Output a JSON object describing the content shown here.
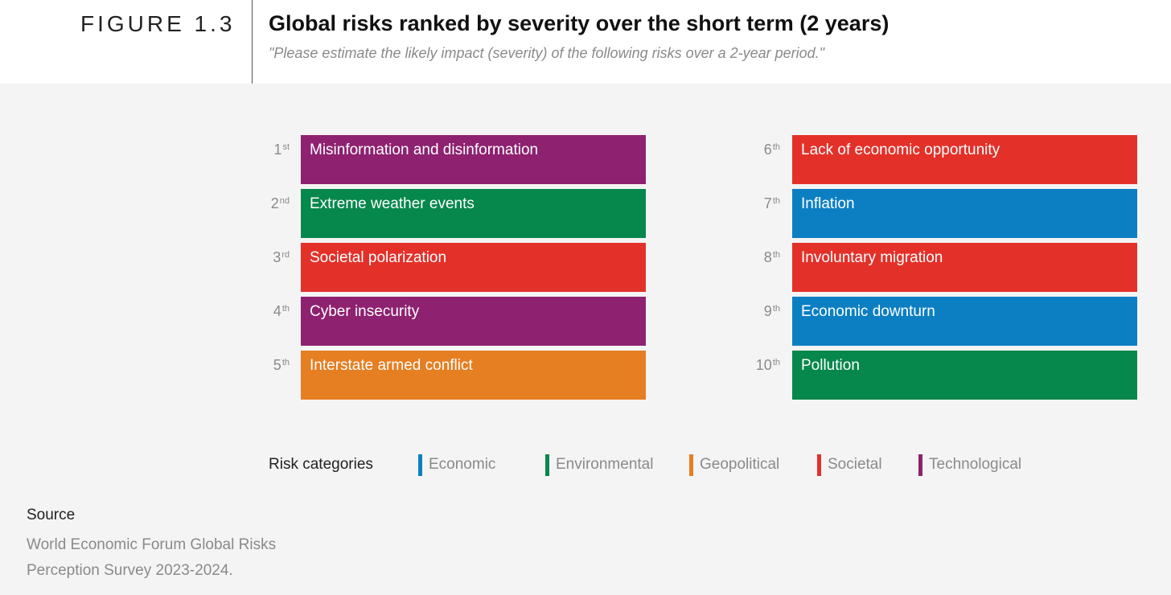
{
  "header": {
    "figure_label": "FIGURE 1.3",
    "title": "Global risks ranked by severity over the short term (2 years)",
    "subtitle": "\"Please estimate the likely impact (severity) of the following risks over a 2-year period.\""
  },
  "colors": {
    "Economic": "#0c7fc3",
    "Environmental": "#06874b",
    "Geopolitical": "#e67e22",
    "Societal": "#e3312a",
    "Technological": "#8e2170"
  },
  "chart_data": {
    "type": "table",
    "title": "Global risks ranked by severity over the short term (2 years)",
    "rows": [
      {
        "rank": "1",
        "suffix": "st",
        "risk": "Misinformation and disinformation",
        "category": "Technological"
      },
      {
        "rank": "2",
        "suffix": "nd",
        "risk": "Extreme weather events",
        "category": "Environmental"
      },
      {
        "rank": "3",
        "suffix": "rd",
        "risk": "Societal polarization",
        "category": "Societal"
      },
      {
        "rank": "4",
        "suffix": "th",
        "risk": "Cyber insecurity",
        "category": "Technological"
      },
      {
        "rank": "5",
        "suffix": "th",
        "risk": "Interstate armed conflict",
        "category": "Geopolitical"
      },
      {
        "rank": "6",
        "suffix": "th",
        "risk": "Lack of economic opportunity",
        "category": "Societal"
      },
      {
        "rank": "7",
        "suffix": "th",
        "risk": "Inflation",
        "category": "Economic"
      },
      {
        "rank": "8",
        "suffix": "th",
        "risk": "Involuntary migration",
        "category": "Societal"
      },
      {
        "rank": "9",
        "suffix": "th",
        "risk": "Economic downturn",
        "category": "Economic"
      },
      {
        "rank": "10",
        "suffix": "th",
        "risk": "Pollution",
        "category": "Environmental"
      }
    ],
    "legend": {
      "title": "Risk categories",
      "items": [
        "Economic",
        "Environmental",
        "Geopolitical",
        "Societal",
        "Technological"
      ]
    }
  },
  "source": {
    "title": "Source",
    "text": "World Economic Forum Global Risks Perception Survey 2023-2024."
  }
}
